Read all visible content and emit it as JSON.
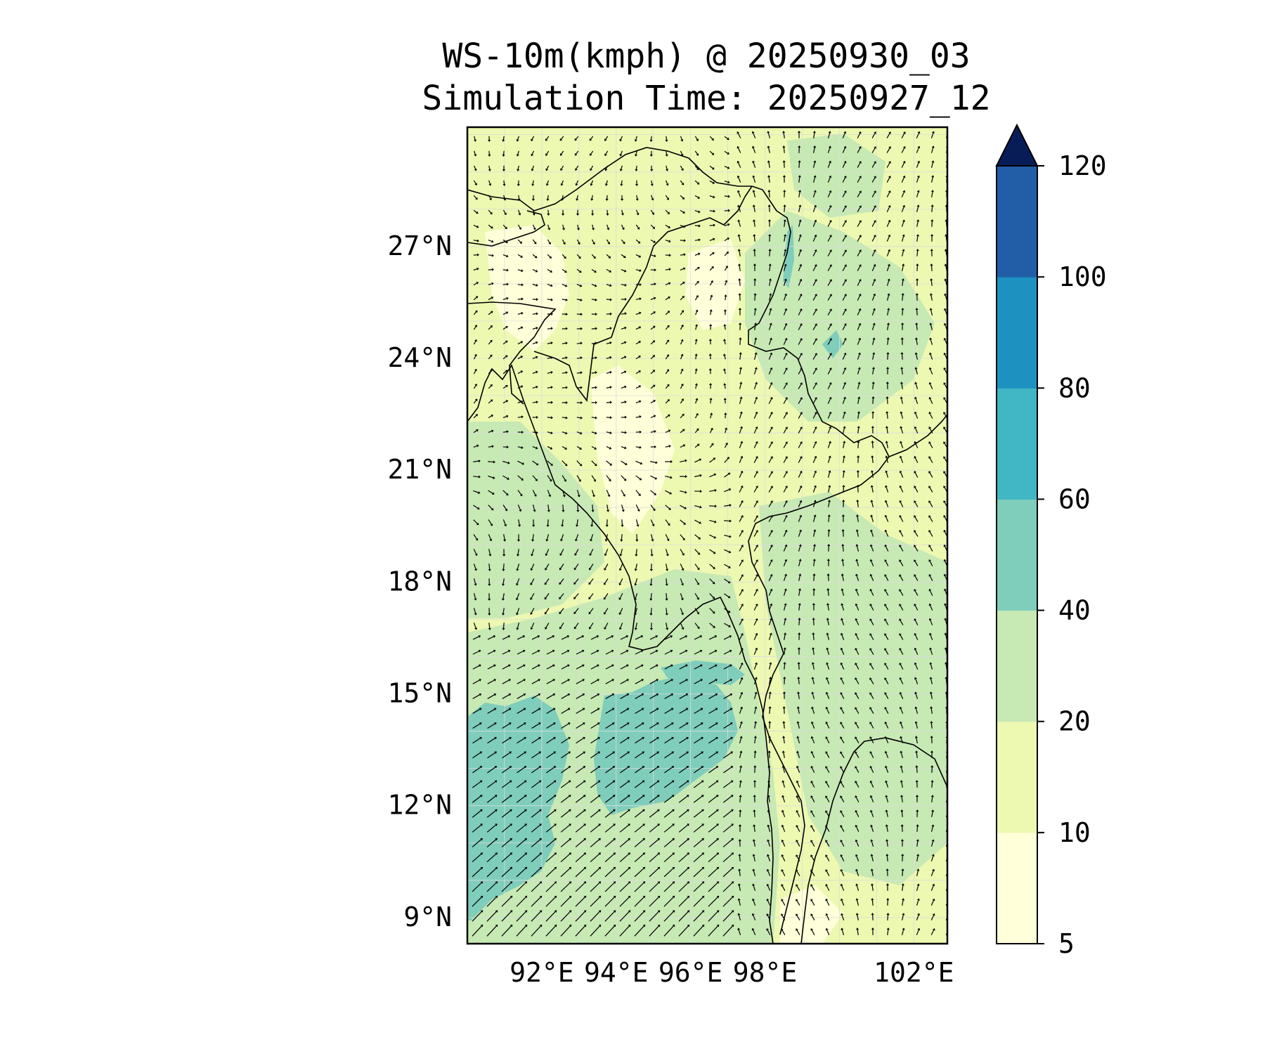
{
  "title": {
    "line1": "WS-10m(kmph) @ 20250930_03",
    "line2": "Simulation Time: 20250927_12"
  },
  "map": {
    "variable": "WS-10m",
    "unit": "kmph",
    "lat_labels": [
      {
        "value": 27,
        "text": "27°N"
      },
      {
        "value": 24,
        "text": "24°N"
      },
      {
        "value": 21,
        "text": "21°N"
      },
      {
        "value": 18,
        "text": "18°N"
      },
      {
        "value": 15,
        "text": "15°N"
      },
      {
        "value": 12,
        "text": "12°N"
      },
      {
        "value": 9,
        "text": "9°N"
      }
    ],
    "lon_labels": [
      {
        "value": 92,
        "text": "92°E"
      },
      {
        "value": 94,
        "text": "94°E"
      },
      {
        "value": 96,
        "text": "96°E"
      },
      {
        "value": 98,
        "text": "98°E"
      },
      {
        "value": 102,
        "text": "102°E"
      }
    ],
    "lat_range": [
      8.3,
      30.2
    ],
    "lon_range": [
      90.0,
      102.9
    ],
    "colors": {
      "land_outline": "#000000",
      "grid": "#dcdcdc"
    }
  },
  "colorbar": {
    "levels": [
      5,
      10,
      20,
      40,
      60,
      80,
      100,
      120
    ],
    "tick_labels": [
      "5",
      "10",
      "20",
      "40",
      "60",
      "80",
      "100",
      "120"
    ],
    "colors": [
      "#ffffd9",
      "#edf8b1",
      "#c7e9b4",
      "#7fcdbb",
      "#41b6c4",
      "#1d91c0",
      "#225ea8",
      "#253494"
    ],
    "extend_max_color": "#081d58",
    "extend": "max"
  }
}
